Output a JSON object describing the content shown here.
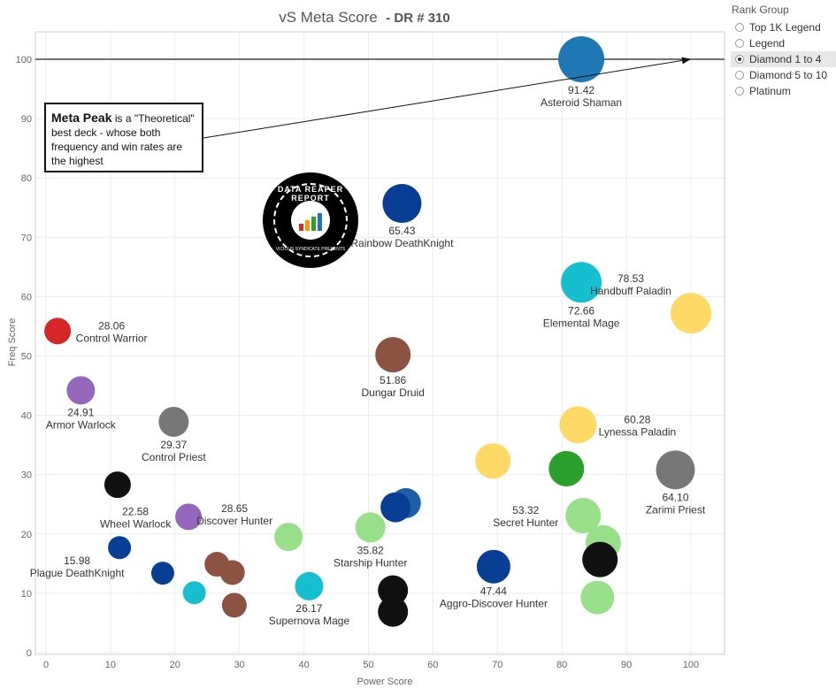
{
  "chart_data": {
    "type": "scatter",
    "title": "vS Meta Score",
    "subtitle": "- DR # 310",
    "xlabel": "Power Score",
    "ylabel": "Freq Score",
    "xlim": [
      0,
      105
    ],
    "ylim": [
      0,
      105
    ],
    "xticks": [
      0,
      10,
      20,
      30,
      40,
      50,
      60,
      70,
      80,
      90,
      100
    ],
    "yticks": [
      0,
      10,
      20,
      30,
      40,
      50,
      60,
      70,
      80,
      90,
      100
    ],
    "reference_line": {
      "y": 100
    },
    "points": [
      {
        "name": "Asteroid Shaman",
        "score": "91.42",
        "x": 83.0,
        "y": 100.0,
        "r": 26,
        "color": "#1f77b4",
        "label_pos": "below"
      },
      {
        "name": "Rainbow DeathKnight",
        "score": "65.43",
        "x": 55.2,
        "y": 75.7,
        "r": 22,
        "color": "#083f94",
        "label_pos": "below"
      },
      {
        "name": "Handbuff Paladin",
        "score": "78.53",
        "x": 100.0,
        "y": 57.2,
        "r": 23,
        "color": "#ffd966",
        "label_pos": "above-left"
      },
      {
        "name": "Elemental Mage",
        "score": "72.66",
        "x": 83.0,
        "y": 62.4,
        "r": 23,
        "color": "#17becf",
        "label_pos": "below"
      },
      {
        "name": "Control Warrior",
        "score": "28.06",
        "x": 1.8,
        "y": 54.2,
        "r": 15,
        "color": "#d62728",
        "label_pos": "right"
      },
      {
        "name": "Dungar Druid",
        "score": "51.86",
        "x": 53.8,
        "y": 50.2,
        "r": 20,
        "color": "#8c5342",
        "label_pos": "below"
      },
      {
        "name": "Armor Warlock",
        "score": "24.91",
        "x": 5.4,
        "y": 44.2,
        "r": 16,
        "color": "#9467bd",
        "label_pos": "below"
      },
      {
        "name": "Control Priest",
        "score": "29.37",
        "x": 19.8,
        "y": 38.9,
        "r": 17,
        "color": "#777777",
        "label_pos": "below"
      },
      {
        "name": "Lynessa Paladin",
        "score": "60.28",
        "x": 82.5,
        "y": 38.4,
        "r": 21,
        "color": "#ffd966",
        "label_pos": "right"
      },
      {
        "name": "Zarimi Priest",
        "score": "64.10",
        "x": 97.6,
        "y": 30.8,
        "r": 22,
        "color": "#777777",
        "label_pos": "below"
      },
      {
        "name": "",
        "score": "",
        "x": 69.3,
        "y": 32.3,
        "r": 20,
        "color": "#ffd966",
        "label_pos": "none"
      },
      {
        "name": "",
        "score": "",
        "x": 80.7,
        "y": 31.0,
        "r": 20,
        "color": "#2ca02c",
        "label_pos": "none"
      },
      {
        "name": "",
        "score": "",
        "x": 11.1,
        "y": 28.3,
        "r": 15,
        "color": "#111111",
        "label_pos": "none"
      },
      {
        "name": "Wheel Warlock",
        "score": "22.58",
        "x": 22.1,
        "y": 22.9,
        "r": 15,
        "color": "#9467bd",
        "label_pos": "left"
      },
      {
        "name": "Discover Hunter",
        "score": "28.65",
        "x": 37.6,
        "y": 19.5,
        "r": 16,
        "color": "#98df8a",
        "label_pos": "above-left"
      },
      {
        "name": "Starship Hunter",
        "score": "35.82",
        "x": 50.3,
        "y": 21.1,
        "r": 17,
        "color": "#98df8a",
        "label_pos": "below"
      },
      {
        "name": "",
        "score": "",
        "x": 55.8,
        "y": 25.2,
        "r": 17,
        "color": "#1f5fa8",
        "label_pos": "none"
      },
      {
        "name": "",
        "score": "",
        "x": 54.2,
        "y": 24.5,
        "r": 17,
        "color": "#083f94",
        "label_pos": "none"
      },
      {
        "name": "Secret Hunter",
        "score": "53.32",
        "x": 83.3,
        "y": 23.1,
        "r": 20,
        "color": "#98df8a",
        "label_pos": "left"
      },
      {
        "name": "",
        "score": "",
        "x": 86.4,
        "y": 18.5,
        "r": 20,
        "color": "#98df8a",
        "label_pos": "none"
      },
      {
        "name": "",
        "score": "",
        "x": 85.9,
        "y": 15.7,
        "r": 20,
        "color": "#111111",
        "label_pos": "none"
      },
      {
        "name": "Plague DeathKnight",
        "score": "15.98",
        "x": 11.4,
        "y": 17.7,
        "r": 13,
        "color": "#083f94",
        "label_pos": "below-left"
      },
      {
        "name": "",
        "score": "",
        "x": 18.1,
        "y": 13.4,
        "r": 13,
        "color": "#083f94",
        "label_pos": "none"
      },
      {
        "name": "",
        "score": "",
        "x": 26.5,
        "y": 14.9,
        "r": 14,
        "color": "#8c5342",
        "label_pos": "none"
      },
      {
        "name": "",
        "score": "",
        "x": 28.9,
        "y": 13.5,
        "r": 14,
        "color": "#8c5342",
        "label_pos": "none"
      },
      {
        "name": "",
        "score": "",
        "x": 23.0,
        "y": 10.1,
        "r": 13,
        "color": "#17becf",
        "label_pos": "none"
      },
      {
        "name": "",
        "score": "",
        "x": 29.2,
        "y": 8.0,
        "r": 14,
        "color": "#8c5342",
        "label_pos": "none"
      },
      {
        "name": "Supernova Mage",
        "score": "26.17",
        "x": 40.8,
        "y": 11.2,
        "r": 16,
        "color": "#17becf",
        "label_pos": "below"
      },
      {
        "name": "",
        "score": "",
        "x": 53.8,
        "y": 10.5,
        "r": 17,
        "color": "#111111",
        "label_pos": "none"
      },
      {
        "name": "",
        "score": "",
        "x": 53.8,
        "y": 6.9,
        "r": 17,
        "color": "#111111",
        "label_pos": "none"
      },
      {
        "name": "Aggro-Discover Hunter",
        "score": "47.44",
        "x": 69.4,
        "y": 14.5,
        "r": 19,
        "color": "#083f94",
        "label_pos": "below"
      },
      {
        "name": "",
        "score": "",
        "x": 85.5,
        "y": 9.3,
        "r": 19,
        "color": "#98df8a",
        "label_pos": "none"
      }
    ]
  },
  "callout": {
    "bold": "Meta Peak",
    "text": " is a \"Theoretical\" best deck - whose both frequency and win rates are the highest"
  },
  "logo": {
    "top_text": "DATA REAPER REPORT",
    "bottom_text": "VICIOUS SYNDICATE PRESENTS"
  },
  "legend": {
    "title": "Rank Group",
    "selected": "Diamond 1 to 4",
    "items": [
      "Top 1K Legend",
      "Legend",
      "Diamond 1 to 4",
      "Diamond 5 to 10",
      "Platinum"
    ]
  }
}
